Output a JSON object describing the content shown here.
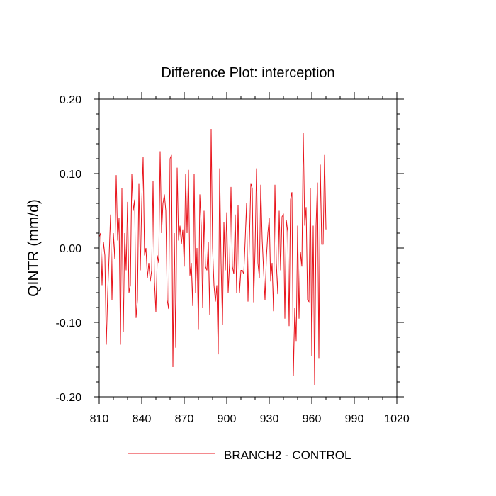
{
  "chart_data": {
    "type": "line",
    "title": "Difference Plot: interception",
    "xlabel": "",
    "ylabel": "QINTR  (mm/d)",
    "xlim": [
      810,
      1020
    ],
    "ylim": [
      -0.2,
      0.2
    ],
    "xticks": [
      810,
      840,
      870,
      900,
      930,
      960,
      990,
      1020
    ],
    "xtick_labels": [
      "810",
      "840",
      "870",
      "900",
      "930",
      "960",
      "990",
      "1020"
    ],
    "yticks": [
      -0.2,
      -0.1,
      0.0,
      0.1,
      0.2
    ],
    "ytick_labels": [
      "-0.20",
      "-0.10",
      "0.00",
      "0.10",
      "0.20"
    ],
    "grid": false,
    "legend_position": "bottom-center",
    "series": [
      {
        "name": "BRANCH2 - CONTROL",
        "color": "#e8141c",
        "x_start": 810,
        "x_step": 1,
        "values": [
          0.015,
          0.02,
          -0.05,
          0.008,
          -0.01,
          -0.13,
          -0.06,
          -0.01,
          0.045,
          -0.07,
          0.02,
          -0.015,
          0.098,
          0.01,
          0.04,
          -0.13,
          0.08,
          -0.113,
          0.02,
          -0.03,
          0.062,
          -0.06,
          -0.05,
          0.099,
          0.05,
          0.065,
          -0.094,
          -0.07,
          0.087,
          -0.03,
          0.06,
          0.122,
          -0.01,
          0.0,
          -0.04,
          -0.02,
          -0.045,
          -0.03,
          0.09,
          -0.045,
          -0.086,
          -0.01,
          -0.02,
          0.13,
          0.02,
          0.06,
          0.072,
          0.05,
          -0.07,
          -0.082,
          0.12,
          0.125,
          -0.16,
          0.02,
          -0.134,
          0.108,
          0.01,
          0.03,
          0.005,
          0.025,
          -0.025,
          0.1,
          0.02,
          0.105,
          -0.037,
          -0.02,
          -0.078,
          0.1,
          -0.06,
          0.0,
          -0.11,
          0.072,
          0.03,
          -0.08,
          0.05,
          -0.025,
          -0.03,
          0.008,
          -0.09,
          0.16,
          0.0,
          -0.05,
          -0.072,
          -0.05,
          -0.143,
          0.107,
          -0.02,
          -0.103,
          0.035,
          -0.03,
          0.048,
          -0.06,
          -0.02,
          0.082,
          -0.025,
          -0.035,
          0.045,
          -0.06,
          0.058,
          -0.06,
          -0.03,
          -0.03,
          -0.035,
          0.01,
          0.06,
          -0.072,
          0.01,
          0.087,
          0.08,
          -0.073,
          0.0,
          0.107,
          -0.02,
          -0.04,
          0.085,
          0.012,
          -0.03,
          -0.07,
          -0.012,
          0.02,
          0.04,
          -0.045,
          -0.02,
          -0.085,
          0.085,
          -0.02,
          -0.062,
          0.05,
          -0.03,
          0.042,
          0.045,
          -0.095,
          0.038,
          0.022,
          -0.105,
          0.065,
          0.075,
          -0.172,
          -0.08,
          -0.125,
          0.03,
          -0.095,
          -0.005,
          -0.025,
          0.155,
          0.03,
          0.055,
          -0.07,
          -0.072,
          0.08,
          -0.145,
          0.03,
          -0.184,
          0.03,
          0.088,
          -0.148,
          0.112,
          0.005,
          0.005,
          0.125,
          0.025
        ]
      }
    ]
  }
}
